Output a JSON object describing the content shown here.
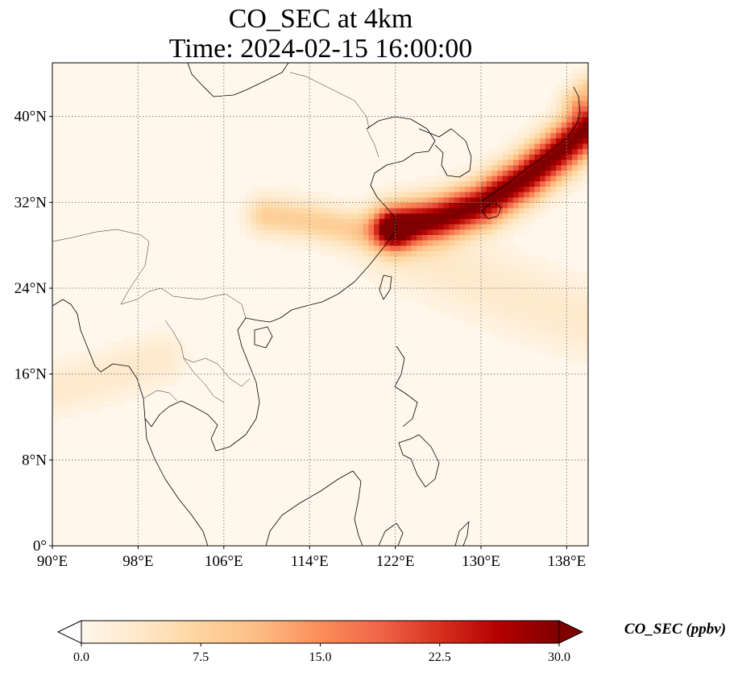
{
  "chart_data": {
    "type": "heatmap",
    "title_line1": "CO_SEC at 4km",
    "title_line2": "Time: 2024-02-15 16:00:00",
    "variable": "CO_SEC",
    "xlim": [
      90,
      140
    ],
    "ylim": [
      0,
      45
    ],
    "x_ticks": [
      {
        "value": 90,
        "label": "90°E"
      },
      {
        "value": 98,
        "label": "98°E"
      },
      {
        "value": 106,
        "label": "106°E"
      },
      {
        "value": 114,
        "label": "114°E"
      },
      {
        "value": 122,
        "label": "122°E"
      },
      {
        "value": 130,
        "label": "130°E"
      },
      {
        "value": 138,
        "label": "138°E"
      }
    ],
    "y_ticks": [
      {
        "value": 0,
        "label": "0°"
      },
      {
        "value": 8,
        "label": "8°N"
      },
      {
        "value": 16,
        "label": "16°N"
      },
      {
        "value": 24,
        "label": "24°N"
      },
      {
        "value": 32,
        "label": "32°N"
      },
      {
        "value": 40,
        "label": "40°N"
      }
    ],
    "grid": true,
    "colormap": "OrRd",
    "colorbar": {
      "label": "CO_SEC (ppbv)",
      "vmin": 0,
      "vmax": 30,
      "extend": "both",
      "ticks": [
        {
          "value": 0,
          "label": "0.0"
        },
        {
          "value": 7.5,
          "label": "7.5"
        },
        {
          "value": 15,
          "label": "15.0"
        },
        {
          "value": 22.5,
          "label": "22.5"
        },
        {
          "value": 30,
          "label": "30.0"
        }
      ],
      "stops": [
        "#fff7ec",
        "#fee8c8",
        "#fdd49e",
        "#fdbb84",
        "#fc8d59",
        "#ef6548",
        "#d7301f",
        "#b30000",
        "#7f0000"
      ]
    },
    "plumes": [
      {
        "lon": [
          122,
          126,
          130,
          134,
          137,
          140
        ],
        "lat": [
          29.8,
          30.5,
          31.8,
          34.2,
          36.5,
          39
        ],
        "peak": 30,
        "width_deg": 1.4
      },
      {
        "lon": [
          110,
          114,
          118,
          122
        ],
        "lat": [
          30.8,
          30.3,
          29.5,
          29
        ],
        "peak": 8,
        "width_deg": 1.2
      },
      {
        "lon": [
          90,
          95,
          100
        ],
        "lat": [
          14.5,
          15.8,
          17.5
        ],
        "peak": 3,
        "width_deg": 1.5
      },
      {
        "lon": [
          122,
          128,
          134,
          140
        ],
        "lat": [
          28,
          25.5,
          23,
          21
        ],
        "peak": 3,
        "width_deg": 2.2
      },
      {
        "lon": [
          139,
          140
        ],
        "lat": [
          41.5,
          42.5
        ],
        "peak": 8,
        "width_deg": 1.0
      }
    ]
  }
}
